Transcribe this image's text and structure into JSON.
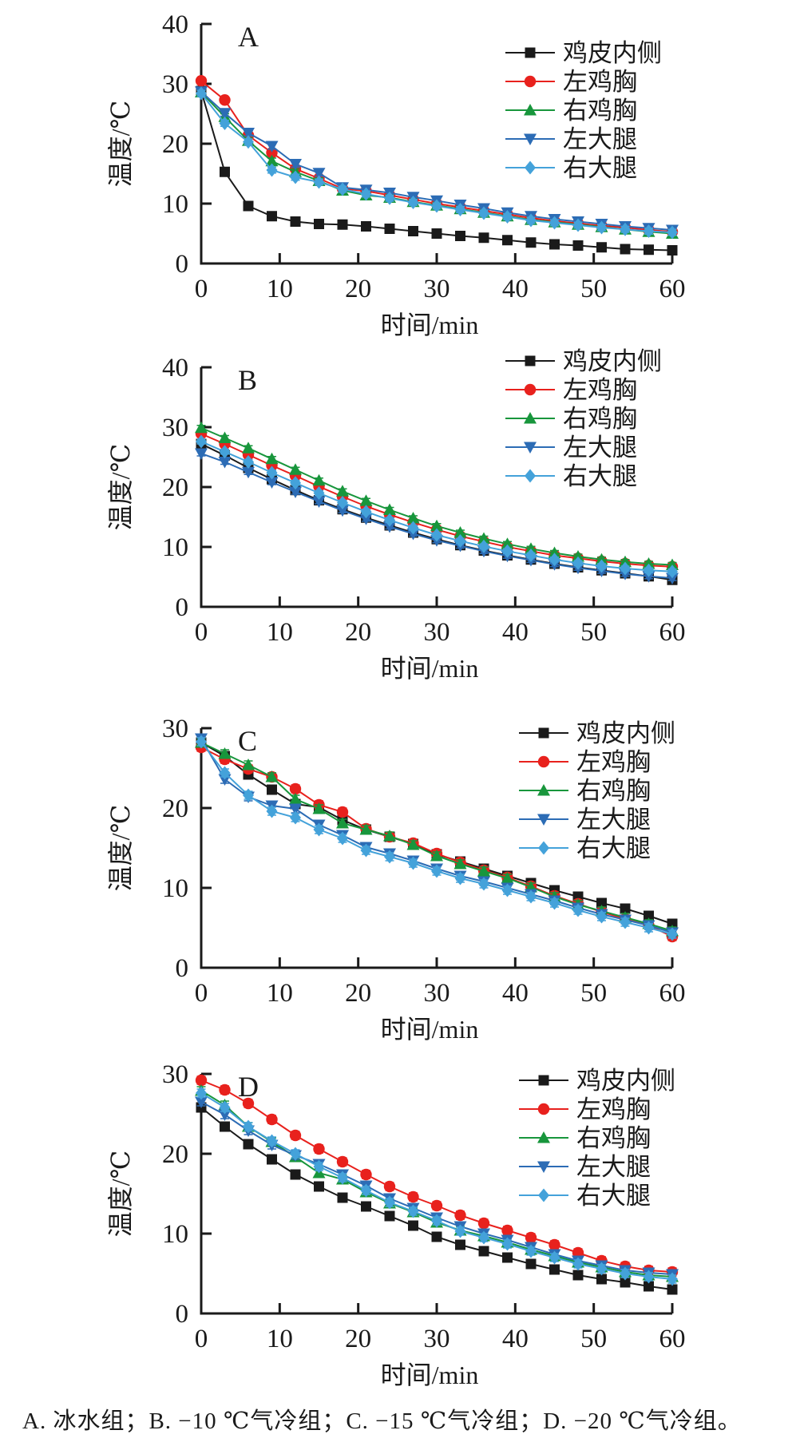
{
  "figure": {
    "caption": "A. 冰水组；B. −10 ℃气冷组；C. −15 ℃气冷组；D. −20 ℃气冷组。"
  },
  "series_meta": [
    {
      "key": "skin-inner",
      "label": "鸡皮内侧",
      "color": "#1a1a1a",
      "marker": "square"
    },
    {
      "key": "left-breast",
      "label": "左鸡胸",
      "color": "#e8211d",
      "marker": "circle"
    },
    {
      "key": "right-breast",
      "label": "右鸡胸",
      "color": "#18963c",
      "marker": "triangle-up"
    },
    {
      "key": "left-thigh",
      "label": "左大腿",
      "color": "#2c6cb5",
      "marker": "triangle-down"
    },
    {
      "key": "right-thigh",
      "label": "右大腿",
      "color": "#44a2da",
      "marker": "diamond"
    }
  ],
  "x_minutes": [
    0,
    3,
    6,
    9,
    12,
    15,
    18,
    21,
    24,
    27,
    30,
    33,
    36,
    39,
    42,
    45,
    48,
    51,
    54,
    57,
    60
  ],
  "chart_data": [
    {
      "type": "line",
      "panel_label": "A",
      "group_label": "冰水组",
      "xlabel": "时间/min",
      "ylabel": "温度/℃",
      "xlim": [
        0,
        60
      ],
      "ylim": [
        0,
        40
      ],
      "xticks": [
        0,
        10,
        20,
        30,
        40,
        50,
        60
      ],
      "yticks": [
        0,
        10,
        20,
        30,
        40
      ],
      "error_bar": 0.5,
      "legend_position": "upper right",
      "series": [
        {
          "name": "鸡皮内侧",
          "values": [
            28.8,
            15.3,
            9.6,
            7.9,
            7.0,
            6.6,
            6.5,
            6.2,
            5.8,
            5.4,
            5.0,
            4.6,
            4.3,
            3.9,
            3.5,
            3.2,
            3.0,
            2.7,
            2.4,
            2.3,
            2.2
          ]
        },
        {
          "name": "左鸡胸",
          "values": [
            30.5,
            27.3,
            21.4,
            18.5,
            15.8,
            14.2,
            12.5,
            12.1,
            11.4,
            10.7,
            10.0,
            9.4,
            8.8,
            8.2,
            7.6,
            7.1,
            6.7,
            6.3,
            6.0,
            5.6,
            5.3
          ]
        },
        {
          "name": "右鸡胸",
          "values": [
            28.6,
            24.5,
            20.5,
            17.1,
            15.3,
            13.8,
            12.2,
            11.4,
            11.0,
            10.3,
            9.7,
            9.1,
            8.5,
            7.9,
            7.3,
            6.9,
            6.5,
            6.1,
            5.7,
            5.3,
            5.0
          ]
        },
        {
          "name": "左大腿",
          "values": [
            28.7,
            25.1,
            21.8,
            19.6,
            16.6,
            15.1,
            12.7,
            12.3,
            11.8,
            11.1,
            10.5,
            9.8,
            9.2,
            8.5,
            7.9,
            7.4,
            7.0,
            6.6,
            6.2,
            5.9,
            5.6
          ]
        },
        {
          "name": "右大腿",
          "values": [
            28.4,
            23.4,
            20.3,
            15.6,
            14.4,
            13.6,
            12.4,
            11.6,
            10.9,
            10.2,
            9.6,
            9.0,
            8.4,
            7.8,
            7.2,
            6.8,
            6.4,
            6.0,
            5.7,
            5.4,
            5.2
          ]
        }
      ]
    },
    {
      "type": "line",
      "panel_label": "B",
      "group_label": "−10 ℃气冷组",
      "xlabel": "时间/min",
      "ylabel": "温度/℃",
      "xlim": [
        0,
        60
      ],
      "ylim": [
        0,
        40
      ],
      "xticks": [
        0,
        10,
        20,
        30,
        40,
        50,
        60
      ],
      "yticks": [
        0,
        10,
        20,
        30,
        40
      ],
      "error_bar": 0.4,
      "legend_position": "upper right",
      "series": [
        {
          "name": "鸡皮内侧",
          "values": [
            27.2,
            25.3,
            23.2,
            21.3,
            19.5,
            17.8,
            16.3,
            14.9,
            13.6,
            12.4,
            11.3,
            10.3,
            9.4,
            8.6,
            7.9,
            7.2,
            6.6,
            6.1,
            5.6,
            5.1,
            4.5
          ]
        },
        {
          "name": "左鸡胸",
          "values": [
            28.9,
            27.2,
            25.4,
            23.6,
            21.9,
            20.1,
            18.4,
            16.8,
            15.4,
            14.1,
            12.9,
            11.8,
            10.9,
            10.0,
            9.3,
            8.6,
            8.1,
            7.6,
            7.2,
            6.9,
            6.7
          ]
        },
        {
          "name": "右鸡胸",
          "values": [
            29.9,
            28.2,
            26.5,
            24.7,
            22.9,
            21.1,
            19.3,
            17.7,
            16.2,
            14.8,
            13.5,
            12.4,
            11.4,
            10.5,
            9.7,
            9.0,
            8.4,
            7.9,
            7.5,
            7.2,
            7.0
          ]
        },
        {
          "name": "左大腿",
          "values": [
            25.6,
            24.2,
            22.5,
            20.8,
            19.2,
            17.6,
            16.1,
            14.7,
            13.4,
            12.2,
            11.1,
            10.2,
            9.3,
            8.5,
            7.8,
            7.1,
            6.5,
            6.0,
            5.5,
            5.1,
            4.8
          ]
        },
        {
          "name": "右大腿",
          "values": [
            27.6,
            25.9,
            24.2,
            22.4,
            20.7,
            19.0,
            17.4,
            15.9,
            14.5,
            13.2,
            12.0,
            11.0,
            10.1,
            9.3,
            8.6,
            7.9,
            7.3,
            6.8,
            6.4,
            6.1,
            5.9
          ]
        }
      ]
    },
    {
      "type": "line",
      "panel_label": "C",
      "group_label": "−15 ℃气冷组",
      "xlabel": "时间/min",
      "ylabel": "温度/℃",
      "xlim": [
        0,
        60
      ],
      "ylim": [
        0,
        30
      ],
      "xticks": [
        0,
        10,
        20,
        30,
        40,
        50,
        60
      ],
      "yticks": [
        0,
        10,
        20,
        30
      ],
      "error_bar": 0.5,
      "legend_position": "upper right",
      "series": [
        {
          "name": "鸡皮内侧",
          "values": [
            28.2,
            26.5,
            24.2,
            22.3,
            20.5,
            20.1,
            18.5,
            17.3,
            16.4,
            15.5,
            14.2,
            13.3,
            12.4,
            11.5,
            10.6,
            9.7,
            8.9,
            8.1,
            7.4,
            6.5,
            5.5
          ]
        },
        {
          "name": "左鸡胸",
          "values": [
            27.6,
            26.1,
            24.9,
            23.9,
            22.4,
            20.4,
            19.5,
            17.4,
            16.4,
            15.6,
            14.3,
            13.2,
            12.2,
            11.3,
            10.2,
            9.0,
            8.0,
            7.0,
            6.1,
            5.3,
            3.9
          ]
        },
        {
          "name": "右鸡胸",
          "values": [
            28.2,
            26.8,
            25.4,
            23.9,
            21.1,
            19.9,
            18.1,
            17.3,
            16.5,
            15.4,
            14.0,
            13.0,
            12.1,
            11.2,
            10.1,
            8.9,
            7.9,
            7.1,
            6.3,
            5.5,
            4.6
          ]
        },
        {
          "name": "左大腿",
          "values": [
            28.7,
            23.6,
            21.4,
            20.3,
            19.9,
            17.9,
            16.6,
            15.1,
            14.3,
            13.4,
            12.4,
            11.5,
            10.8,
            10.0,
            9.2,
            8.4,
            7.5,
            6.7,
            6.0,
            5.3,
            4.4
          ]
        },
        {
          "name": "右大腿",
          "values": [
            28.3,
            24.4,
            21.6,
            19.6,
            18.8,
            17.3,
            16.2,
            14.7,
            13.9,
            13.1,
            12.1,
            11.2,
            10.5,
            9.7,
            8.9,
            8.1,
            7.2,
            6.4,
            5.7,
            5.0,
            4.2
          ]
        }
      ]
    },
    {
      "type": "line",
      "panel_label": "D",
      "group_label": "−20 ℃气冷组",
      "xlabel": "时间/min",
      "ylabel": "温度/℃",
      "xlim": [
        0,
        60
      ],
      "ylim": [
        0,
        30
      ],
      "xticks": [
        0,
        10,
        20,
        30,
        40,
        50,
        60
      ],
      "yticks": [
        0,
        10,
        20,
        30
      ],
      "error_bar": 0.5,
      "legend_position": "upper right",
      "series": [
        {
          "name": "鸡皮内侧",
          "values": [
            25.8,
            23.4,
            21.2,
            19.3,
            17.4,
            15.9,
            14.5,
            13.4,
            12.2,
            11.0,
            9.6,
            8.6,
            7.8,
            7.0,
            6.2,
            5.5,
            4.8,
            4.3,
            3.9,
            3.4,
            3.0
          ]
        },
        {
          "name": "左鸡胸",
          "values": [
            29.2,
            28.0,
            26.3,
            24.3,
            22.3,
            20.6,
            19.0,
            17.4,
            15.9,
            14.6,
            13.5,
            12.3,
            11.3,
            10.4,
            9.5,
            8.6,
            7.6,
            6.6,
            5.9,
            5.4,
            5.2
          ]
        },
        {
          "name": "右鸡胸",
          "values": [
            27.9,
            26.1,
            23.4,
            21.5,
            19.6,
            17.6,
            16.8,
            15.2,
            13.8,
            12.7,
            11.4,
            10.4,
            9.7,
            8.9,
            8.0,
            7.2,
            6.4,
            5.8,
            5.2,
            4.8,
            4.6
          ]
        },
        {
          "name": "左大腿",
          "values": [
            26.5,
            24.9,
            22.9,
            21.1,
            19.8,
            18.7,
            17.4,
            16.0,
            14.4,
            13.2,
            12.0,
            10.9,
            10.0,
            9.2,
            8.3,
            7.4,
            6.6,
            6.0,
            5.4,
            5.1,
            4.9
          ]
        },
        {
          "name": "右大腿",
          "values": [
            27.6,
            25.8,
            23.4,
            21.6,
            20.0,
            18.4,
            17.0,
            15.4,
            13.9,
            12.8,
            11.6,
            10.3,
            9.5,
            8.7,
            7.8,
            7.0,
            6.2,
            5.6,
            5.0,
            4.6,
            4.3
          ]
        }
      ]
    }
  ]
}
